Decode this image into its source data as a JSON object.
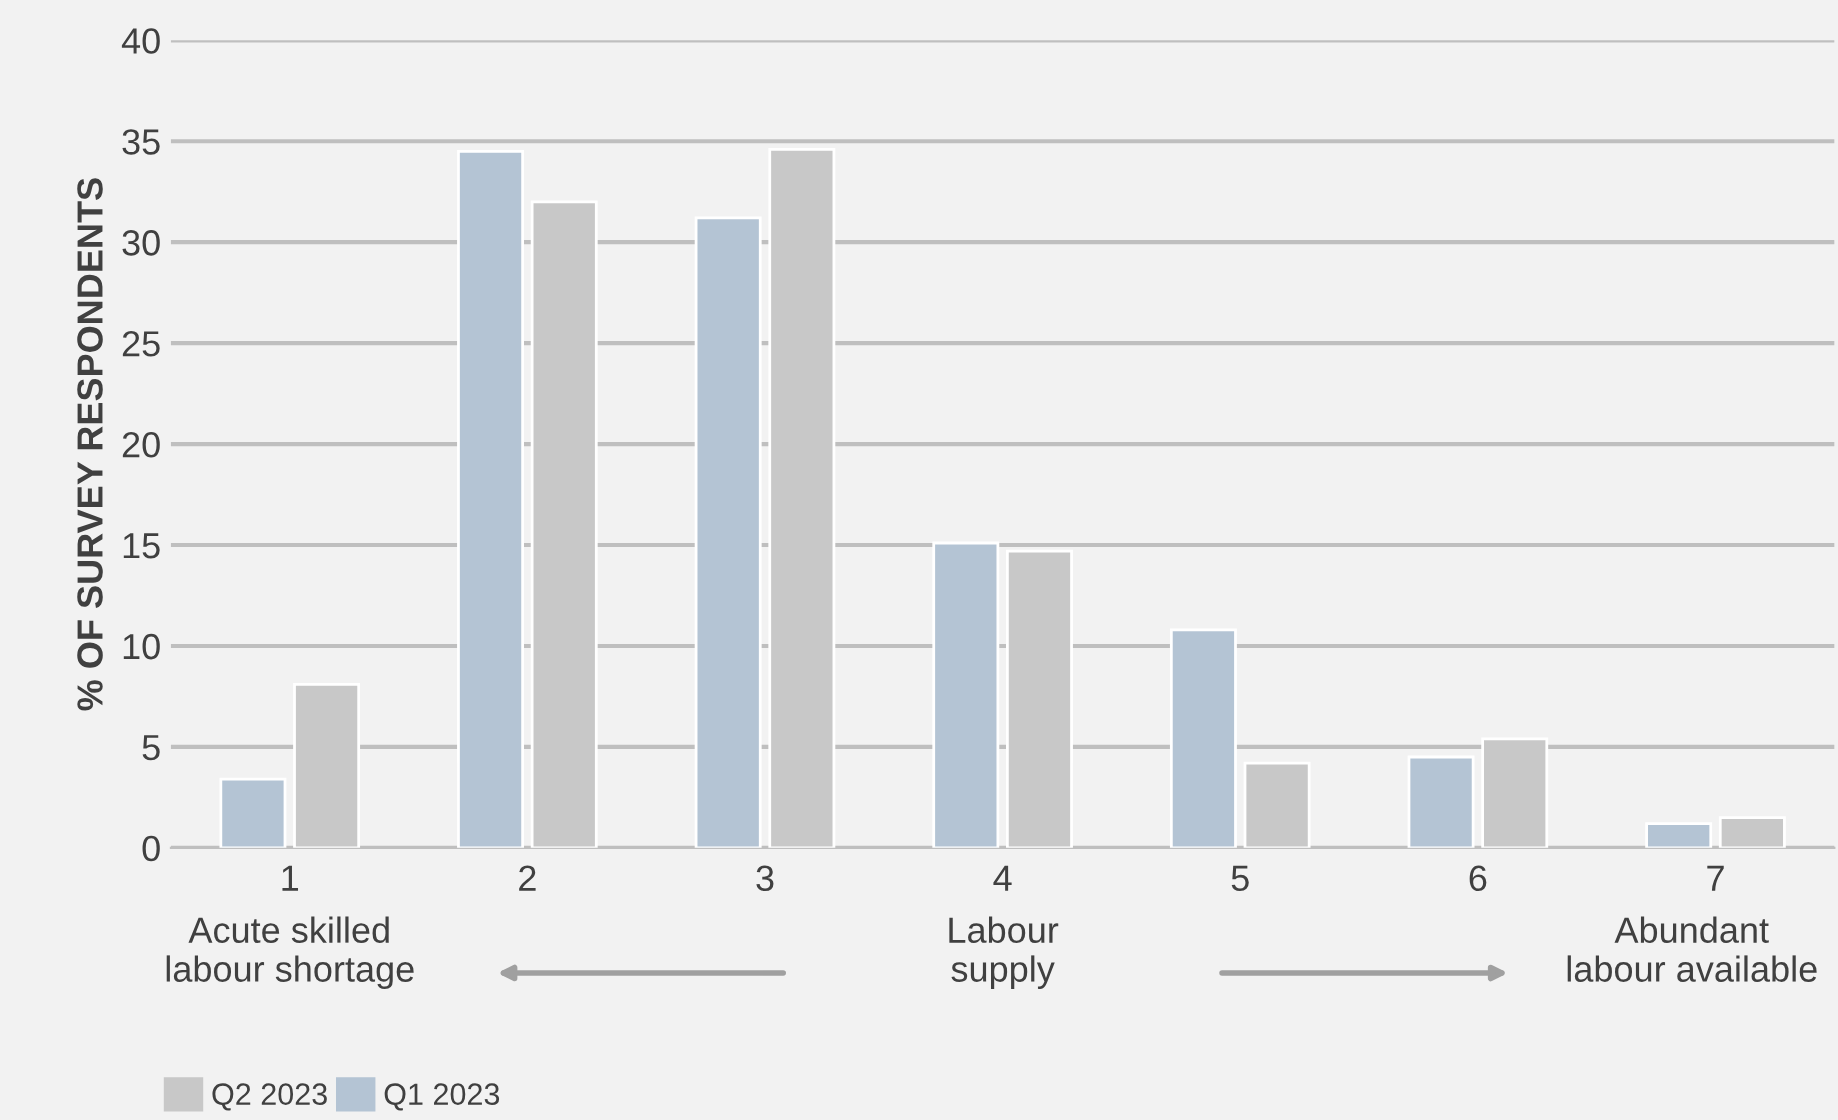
{
  "chart_data": {
    "type": "bar",
    "ylabel": "% OF SURVEY RESPONDENTS",
    "categories": [
      "1",
      "2",
      "3",
      "4",
      "5",
      "6",
      "7"
    ],
    "series": [
      {
        "name": "Q1 2023",
        "color": "#b4c4d4",
        "values": [
          3.4,
          34.5,
          31.2,
          15.1,
          10.8,
          4.5,
          1.2
        ]
      },
      {
        "name": "Q2 2023",
        "color": "#c8c8c8",
        "values": [
          8.1,
          32.0,
          34.6,
          14.7,
          4.2,
          5.4,
          1.5
        ]
      }
    ],
    "ylim": [
      0,
      40
    ],
    "yticks": [
      0,
      5,
      10,
      15,
      20,
      25,
      30,
      35,
      40
    ],
    "grid": "y",
    "legend": "bottom left",
    "annotations": [
      "Acute skilled\nlabour shortage",
      "Labour\nsupply",
      "Abundant\nlabour available"
    ]
  }
}
